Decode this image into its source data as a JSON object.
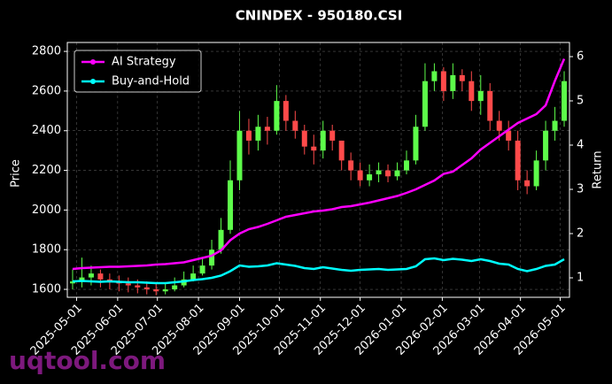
{
  "chart_data": {
    "type": "candlestick",
    "title": "CNINDEX - 950180.CSI",
    "ylabel": "Price",
    "y2label": "Return",
    "watermark": "uqtool.com",
    "x": [
      "2025-04-28",
      "2025-05-05",
      "2025-05-12",
      "2025-05-19",
      "2025-05-26",
      "2025-06-02",
      "2025-06-09",
      "2025-06-16",
      "2025-06-23",
      "2025-06-30",
      "2025-07-07",
      "2025-07-14",
      "2025-07-21",
      "2025-07-28",
      "2025-08-04",
      "2025-08-11",
      "2025-08-18",
      "2025-08-25",
      "2025-09-01",
      "2025-09-08",
      "2025-09-15",
      "2025-09-22",
      "2025-09-29",
      "2025-10-06",
      "2025-10-13",
      "2025-10-20",
      "2025-10-27",
      "2025-11-03",
      "2025-11-10",
      "2025-11-17",
      "2025-11-24",
      "2025-12-01",
      "2025-12-08",
      "2025-12-15",
      "2025-12-22",
      "2025-12-29",
      "2026-01-05",
      "2026-01-12",
      "2026-01-19",
      "2026-01-26",
      "2026-02-02",
      "2026-02-09",
      "2026-02-16",
      "2026-02-23",
      "2026-03-02",
      "2026-03-09",
      "2026-03-16",
      "2026-03-23",
      "2026-03-30",
      "2026-04-06",
      "2026-04-13",
      "2026-04-20",
      "2026-04-27",
      "2026-05-04"
    ],
    "candles": {
      "up_color": "#5dfc4a",
      "down_color": "#ff4a4a",
      "open": [
        1630,
        1640,
        1660,
        1680,
        1650,
        1640,
        1630,
        1620,
        1610,
        1600,
        1590,
        1600,
        1620,
        1650,
        1680,
        1720,
        1800,
        1900,
        2150,
        2400,
        2350,
        2420,
        2400,
        2550,
        2450,
        2400,
        2320,
        2300,
        2400,
        2350,
        2250,
        2200,
        2150,
        2180,
        2200,
        2170,
        2200,
        2250,
        2420,
        2650,
        2700,
        2600,
        2680,
        2650,
        2550,
        2600,
        2450,
        2400,
        2350,
        2150,
        2120,
        2250,
        2400,
        2450
      ],
      "high": [
        1700,
        1760,
        1720,
        1700,
        1680,
        1670,
        1660,
        1650,
        1640,
        1630,
        1630,
        1660,
        1690,
        1720,
        1760,
        1850,
        1960,
        2250,
        2500,
        2460,
        2480,
        2470,
        2630,
        2580,
        2500,
        2430,
        2380,
        2450,
        2430,
        2350,
        2290,
        2240,
        2230,
        2240,
        2230,
        2240,
        2300,
        2480,
        2740,
        2740,
        2720,
        2740,
        2710,
        2700,
        2680,
        2640,
        2500,
        2450,
        2400,
        2200,
        2300,
        2450,
        2520,
        2700
      ],
      "low": [
        1600,
        1610,
        1620,
        1610,
        1600,
        1590,
        1585,
        1580,
        1575,
        1570,
        1575,
        1590,
        1610,
        1640,
        1670,
        1700,
        1780,
        1880,
        2100,
        2280,
        2300,
        2330,
        2380,
        2400,
        2360,
        2280,
        2230,
        2260,
        2300,
        2200,
        2150,
        2120,
        2120,
        2140,
        2140,
        2150,
        2180,
        2230,
        2400,
        2600,
        2550,
        2560,
        2600,
        2500,
        2480,
        2400,
        2350,
        2300,
        2100,
        2080,
        2100,
        2200,
        2350,
        2420
      ],
      "close": [
        1640,
        1660,
        1680,
        1650,
        1640,
        1630,
        1620,
        1610,
        1600,
        1590,
        1600,
        1620,
        1650,
        1680,
        1720,
        1800,
        1900,
        2150,
        2400,
        2350,
        2420,
        2400,
        2550,
        2450,
        2400,
        2320,
        2300,
        2400,
        2350,
        2250,
        2200,
        2150,
        2180,
        2200,
        2170,
        2200,
        2250,
        2420,
        2650,
        2700,
        2600,
        2680,
        2650,
        2550,
        2600,
        2450,
        2400,
        2350,
        2150,
        2120,
        2250,
        2400,
        2450,
        2650
      ]
    },
    "series": [
      {
        "name": "AI Strategy",
        "color": "#ff00ff",
        "axis": "y2",
        "values": [
          1.2,
          1.22,
          1.23,
          1.24,
          1.25,
          1.25,
          1.26,
          1.27,
          1.28,
          1.3,
          1.31,
          1.33,
          1.35,
          1.4,
          1.45,
          1.5,
          1.62,
          1.85,
          2.0,
          2.1,
          2.15,
          2.22,
          2.3,
          2.38,
          2.42,
          2.46,
          2.5,
          2.52,
          2.55,
          2.6,
          2.62,
          2.66,
          2.7,
          2.75,
          2.8,
          2.85,
          2.92,
          3.0,
          3.1,
          3.2,
          3.35,
          3.4,
          3.55,
          3.7,
          3.9,
          4.05,
          4.2,
          4.35,
          4.5,
          4.6,
          4.7,
          4.9,
          5.45,
          5.95
        ]
      },
      {
        "name": "Buy-and-Hold",
        "color": "#00ffff",
        "axis": "y2",
        "values": [
          0.92,
          0.93,
          0.92,
          0.91,
          0.92,
          0.91,
          0.9,
          0.9,
          0.89,
          0.88,
          0.88,
          0.9,
          0.92,
          0.95,
          0.97,
          1.0,
          1.05,
          1.15,
          1.28,
          1.25,
          1.26,
          1.28,
          1.33,
          1.3,
          1.27,
          1.22,
          1.2,
          1.24,
          1.21,
          1.18,
          1.16,
          1.18,
          1.19,
          1.2,
          1.18,
          1.19,
          1.2,
          1.26,
          1.42,
          1.44,
          1.4,
          1.43,
          1.41,
          1.38,
          1.42,
          1.38,
          1.32,
          1.3,
          1.2,
          1.15,
          1.2,
          1.27,
          1.3,
          1.42
        ]
      }
    ],
    "xlim": [
      "2025-04-24",
      "2026-05-08"
    ],
    "xticks": [
      "2025-05-01",
      "2025-06-01",
      "2025-07-01",
      "2025-08-01",
      "2025-09-01",
      "2025-10-01",
      "2025-11-01",
      "2025-12-01",
      "2026-01-01",
      "2026-02-01",
      "2026-03-01",
      "2026-04-01",
      "2026-05-01"
    ],
    "ylim": [
      1560,
      2845
    ],
    "yticks": [
      1600,
      1800,
      2000,
      2200,
      2400,
      2600,
      2800
    ],
    "y2lim": [
      0.56,
      6.32
    ],
    "y2ticks": [
      1,
      2,
      3,
      4,
      5,
      6
    ],
    "grid": true,
    "legend": "upper left"
  }
}
